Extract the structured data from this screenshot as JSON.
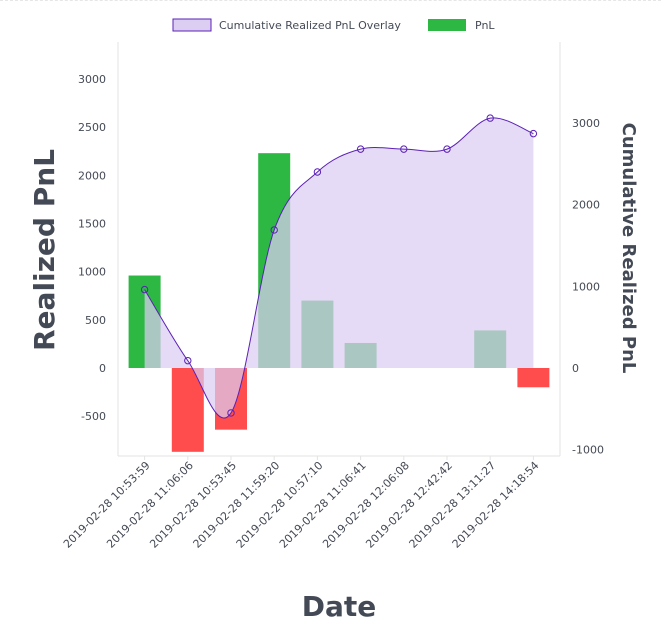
{
  "chart_data": {
    "type": "bar",
    "xlabel": "Date",
    "ylabel": "Realized PnL",
    "y2label": "Cumulative Realized PnL",
    "legend_position": "top-center",
    "grid": false,
    "categories": [
      "2019-02-28 10:53:59",
      "2019-02-28 11:06:06",
      "2019-02-28 10:53:45",
      "2019-02-28 11:59:20",
      "2019-02-28 10:57:10",
      "2019-02-28 11:06:41",
      "2019-02-28 12:06:08",
      "2019-02-28 12:42:42",
      "2019-02-28 13:11:27",
      "2019-02-28 14:18:54"
    ],
    "ylim": [
      -870,
      3400
    ],
    "yticks": [
      -500,
      0,
      500,
      1000,
      1500,
      2000,
      2500,
      3000
    ],
    "y2lim": [
      -1000,
      3000
    ],
    "y2ticks": [
      -1000,
      0,
      1000,
      2000,
      3000
    ],
    "series": [
      {
        "name": "PnL",
        "axis": "left",
        "kind": "bar",
        "values": [
          960,
          -870,
          -640,
          2230,
          700,
          260,
          0,
          0,
          390,
          -200
        ],
        "colors": {
          "positive": "#2db843",
          "negative": "#ff4c4c"
        }
      },
      {
        "name": "Cumulative Realized PnL Overlay",
        "axis": "right",
        "kind": "area-spline",
        "values": [
          960,
          90,
          -550,
          1690,
          2400,
          2680,
          2680,
          2680,
          3060,
          2870
        ],
        "colors": {
          "fill": "#dccdf3",
          "line": "#5b21b6"
        }
      }
    ]
  }
}
